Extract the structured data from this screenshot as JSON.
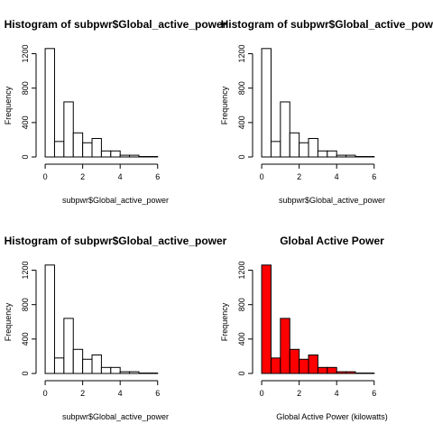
{
  "chart_data": [
    {
      "type": "bar",
      "title": "Histogram of subpwr$Global_active_power",
      "xlabel": "subpwr$Global_active_power",
      "ylabel": "Frequency",
      "bin_edges": [
        0,
        0.5,
        1,
        1.5,
        2,
        2.5,
        3,
        3.5,
        4,
        4.5,
        5,
        5.5,
        6
      ],
      "values": [
        1260,
        180,
        640,
        280,
        165,
        215,
        70,
        70,
        20,
        20,
        5,
        5
      ],
      "bar_color": "#ffffff",
      "xlim": [
        -0.1,
        7.6
      ],
      "ylim": [
        0,
        1300
      ],
      "xticks": [
        0,
        2,
        4,
        6
      ],
      "yticks": [
        0,
        400,
        800,
        1200
      ],
      "grid": false
    },
    {
      "type": "bar",
      "title": "Histogram of subpwr$Global_active_power",
      "xlabel": "subpwr$Global_active_power",
      "ylabel": "Frequency",
      "bin_edges": [
        0,
        0.5,
        1,
        1.5,
        2,
        2.5,
        3,
        3.5,
        4,
        4.5,
        5,
        5.5,
        6
      ],
      "values": [
        1260,
        180,
        640,
        280,
        165,
        215,
        70,
        70,
        20,
        20,
        5,
        5
      ],
      "bar_color": "#ffffff",
      "xlim": [
        -0.1,
        7.6
      ],
      "ylim": [
        0,
        1300
      ],
      "xticks": [
        0,
        2,
        4,
        6
      ],
      "yticks": [
        0,
        400,
        800,
        1200
      ],
      "grid": false
    },
    {
      "type": "bar",
      "title": "Histogram of subpwr$Global_active_power",
      "xlabel": "subpwr$Global_active_power",
      "ylabel": "Frequency",
      "bin_edges": [
        0,
        0.5,
        1,
        1.5,
        2,
        2.5,
        3,
        3.5,
        4,
        4.5,
        5,
        5.5,
        6
      ],
      "values": [
        1260,
        180,
        640,
        280,
        165,
        215,
        70,
        70,
        20,
        20,
        5,
        5
      ],
      "bar_color": "#ffffff",
      "xlim": [
        -0.1,
        7.6
      ],
      "ylim": [
        0,
        1300
      ],
      "xticks": [
        0,
        2,
        4,
        6
      ],
      "yticks": [
        0,
        400,
        800,
        1200
      ],
      "grid": false
    },
    {
      "type": "bar",
      "title": "Global Active Power",
      "xlabel": "Global Active Power (kilowatts)",
      "ylabel": "Frequency",
      "bin_edges": [
        0,
        0.5,
        1,
        1.5,
        2,
        2.5,
        3,
        3.5,
        4,
        4.5,
        5,
        5.5,
        6
      ],
      "values": [
        1260,
        180,
        640,
        280,
        165,
        215,
        70,
        70,
        20,
        20,
        5,
        5
      ],
      "bar_color": "#ff0000",
      "xlim": [
        -0.1,
        7.6
      ],
      "ylim": [
        0,
        1300
      ],
      "xticks": [
        0,
        2,
        4,
        6
      ],
      "yticks": [
        0,
        400,
        800,
        1200
      ],
      "grid": false
    }
  ]
}
